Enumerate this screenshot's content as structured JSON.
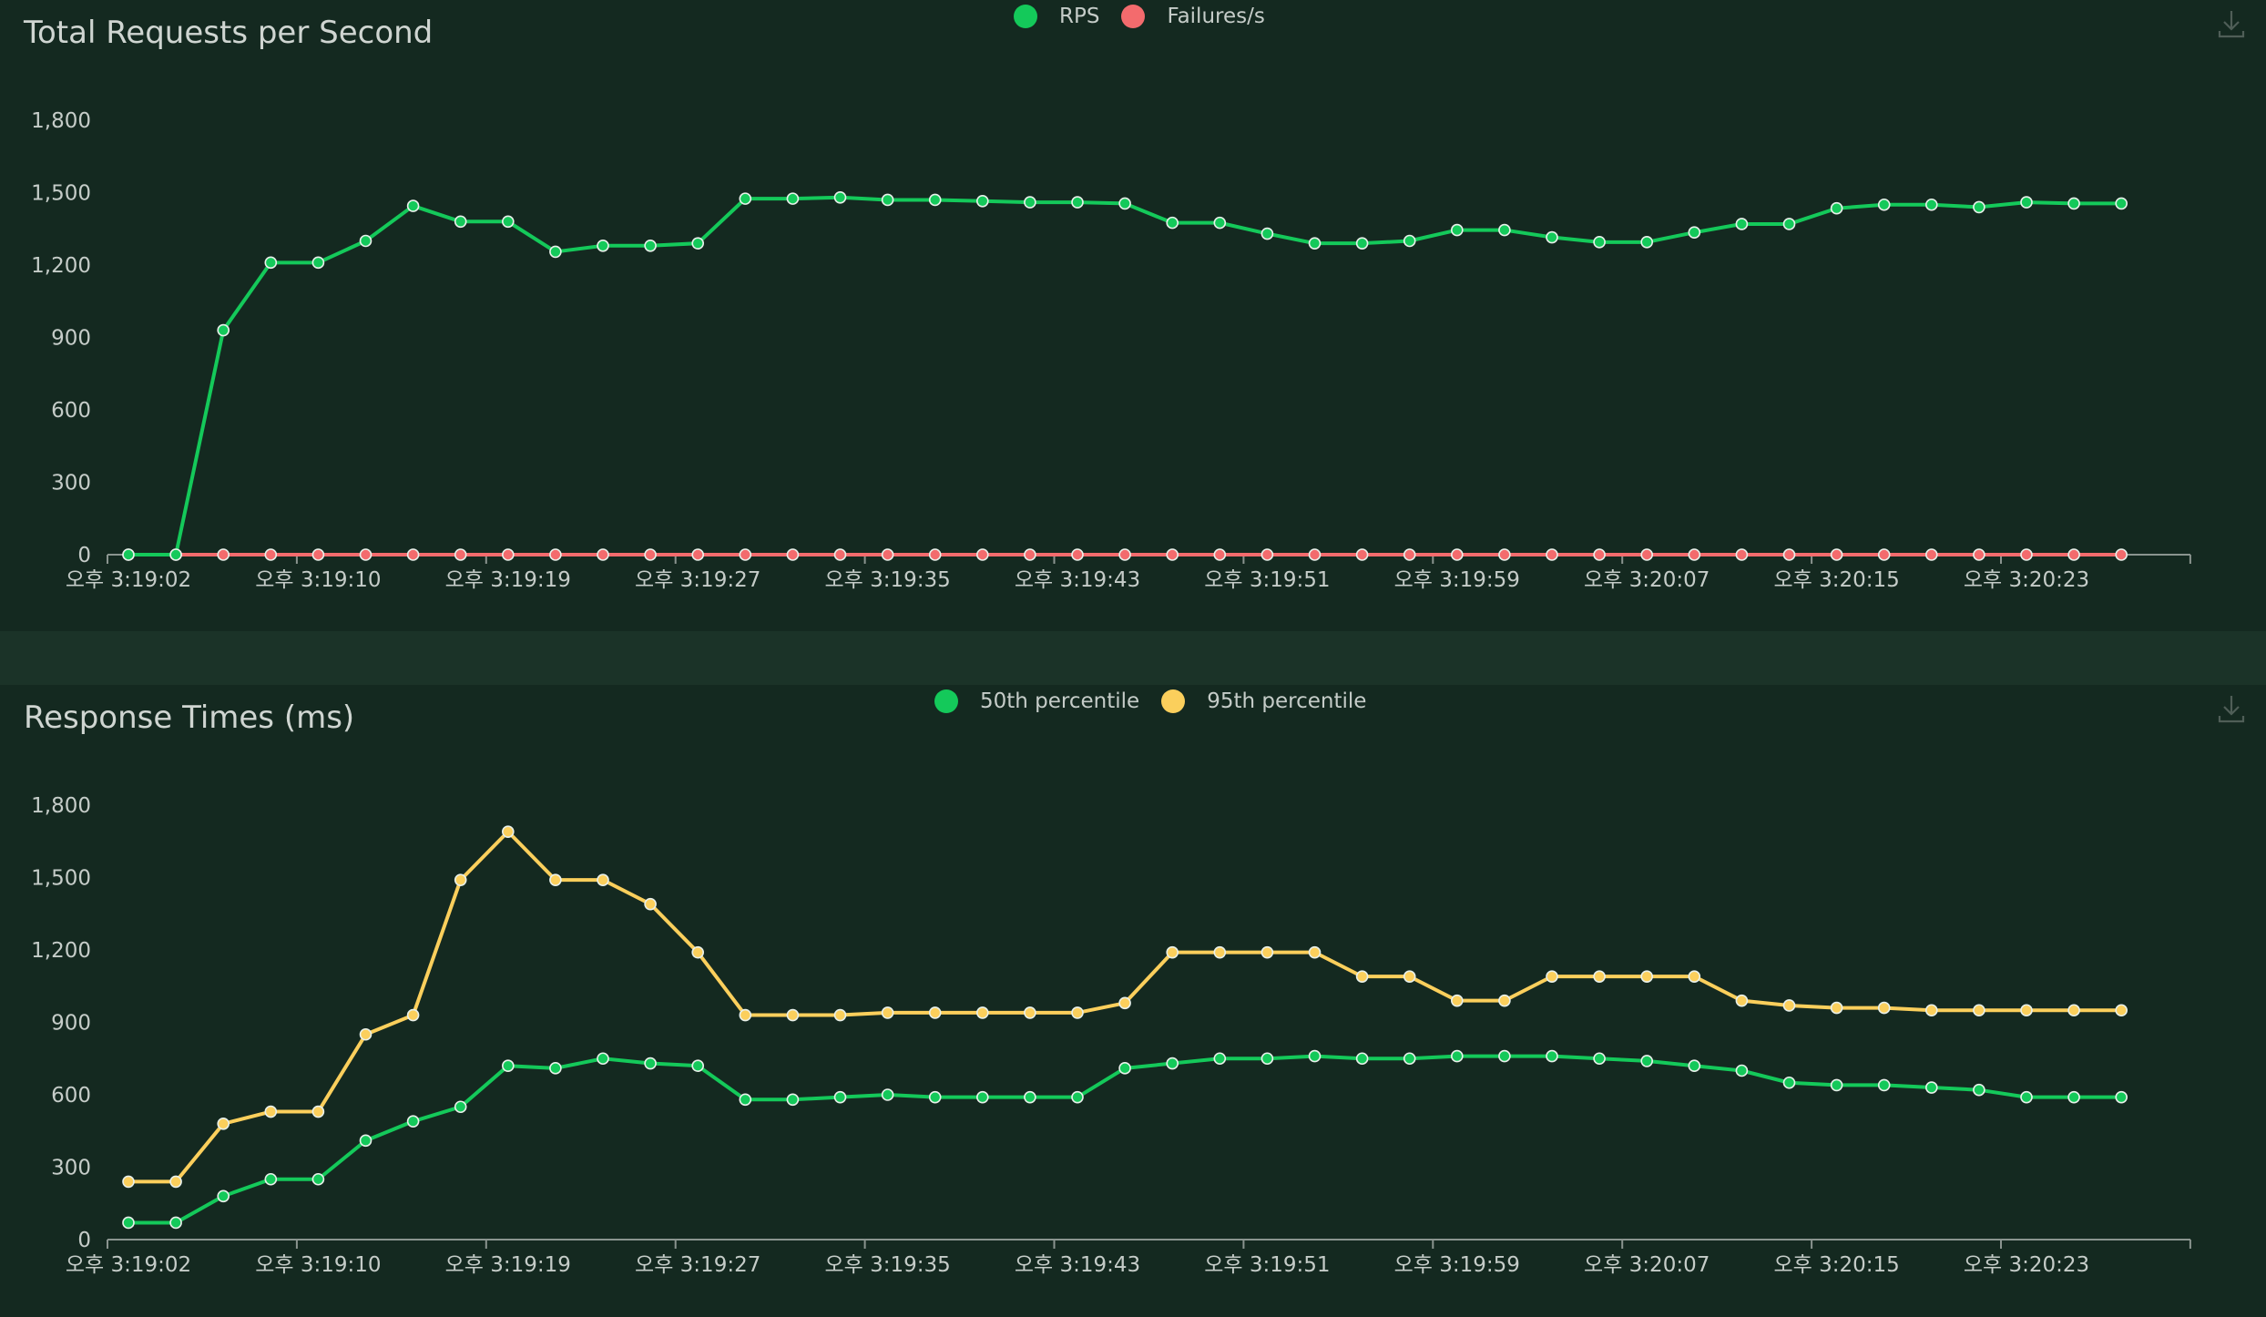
{
  "colors": {
    "background": "#142920",
    "separator": "#1b3328",
    "axis": "#8a948f",
    "text": "#c5ccc8",
    "green": "#14c95a",
    "red": "#f36b6d",
    "yellow": "#fbcf5c"
  },
  "x_tick_labels": [
    "오후 3:19:02",
    "오후 3:19:10",
    "오후 3:19:19",
    "오후 3:19:27",
    "오후 3:19:35",
    "오후 3:19:43",
    "오후 3:19:51",
    "오후 3:19:59",
    "오후 3:20:07",
    "오후 3:20:15",
    "오후 3:20:23"
  ],
  "y_tick_labels": [
    "0",
    "300",
    "600",
    "900",
    "1,200",
    "1,500",
    "1,800"
  ],
  "chart_data": [
    {
      "type": "line",
      "title": "Total Requests per Second",
      "ylim": [
        0,
        1800
      ],
      "legend_position": "top-center",
      "download_icon": "download-icon",
      "series": [
        {
          "name": "RPS",
          "color": "#14c95a",
          "values": [
            0,
            0,
            930,
            1210,
            1210,
            1300,
            1445,
            1380,
            1380,
            1255,
            1280,
            1280,
            1290,
            1475,
            1475,
            1480,
            1470,
            1470,
            1465,
            1460,
            1460,
            1455,
            1375,
            1375,
            1330,
            1290,
            1290,
            1300,
            1345,
            1345,
            1315,
            1295,
            1295,
            1335,
            1370,
            1370,
            1435,
            1450,
            1450,
            1440,
            1460,
            1455,
            1455
          ]
        },
        {
          "name": "Failures/s",
          "color": "#f36b6d",
          "values": [
            0,
            0,
            0,
            0,
            0,
            0,
            0,
            0,
            0,
            0,
            0,
            0,
            0,
            0,
            0,
            0,
            0,
            0,
            0,
            0,
            0,
            0,
            0,
            0,
            0,
            0,
            0,
            0,
            0,
            0,
            0,
            0,
            0,
            0,
            0,
            0,
            0,
            0,
            0,
            0,
            0,
            0,
            0
          ]
        }
      ]
    },
    {
      "type": "line",
      "title": "Response Times (ms)",
      "ylim": [
        0,
        1800
      ],
      "legend_position": "top-center",
      "download_icon": "download-icon",
      "series": [
        {
          "name": "50th percentile",
          "color": "#14c95a",
          "values": [
            70,
            70,
            180,
            250,
            250,
            410,
            490,
            550,
            720,
            710,
            750,
            730,
            720,
            580,
            580,
            590,
            600,
            590,
            590,
            590,
            590,
            710,
            730,
            750,
            750,
            760,
            750,
            750,
            760,
            760,
            760,
            750,
            740,
            720,
            700,
            650,
            640,
            640,
            630,
            620,
            590,
            590,
            590
          ]
        },
        {
          "name": "95th percentile",
          "color": "#fbcf5c",
          "values": [
            240,
            240,
            480,
            530,
            530,
            850,
            930,
            1490,
            1690,
            1490,
            1490,
            1390,
            1190,
            930,
            930,
            930,
            940,
            940,
            940,
            940,
            940,
            980,
            1190,
            1190,
            1190,
            1190,
            1090,
            1090,
            990,
            990,
            1090,
            1090,
            1090,
            1090,
            990,
            970,
            960,
            960,
            950,
            950,
            950,
            950,
            950
          ]
        }
      ]
    }
  ]
}
